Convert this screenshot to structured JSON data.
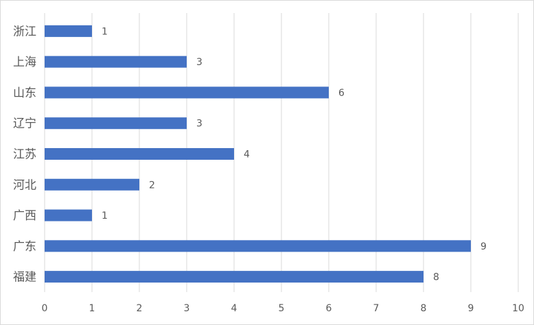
{
  "chart_data": {
    "type": "bar",
    "orientation": "horizontal",
    "categories": [
      "浙江",
      "上海",
      "山东",
      "辽宁",
      "江苏",
      "河北",
      "广西",
      "广东",
      "福建"
    ],
    "values": [
      1,
      3,
      6,
      3,
      4,
      2,
      1,
      9,
      8
    ],
    "xlim": [
      0,
      10
    ],
    "xticks": [
      "0",
      "1",
      "2",
      "3",
      "4",
      "5",
      "6",
      "7",
      "8",
      "9",
      "10"
    ],
    "title": "",
    "xlabel": "",
    "ylabel": "",
    "grid": "vertical",
    "legend": "none",
    "bar_color": "#4472c4",
    "grid_color": "#d9d9d9",
    "label_color": "#595959"
  }
}
